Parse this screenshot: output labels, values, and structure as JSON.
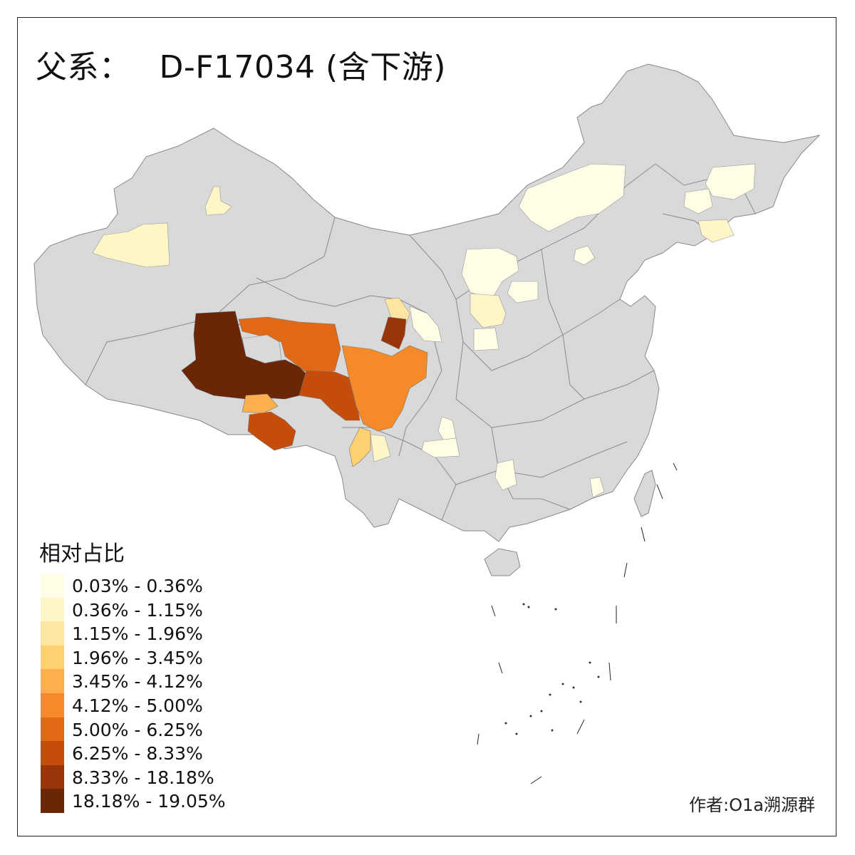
{
  "title": {
    "prefix": "父系：",
    "haplogroup": "D-F17034 (含下游)"
  },
  "legend": {
    "title": "相对占比",
    "items": [
      {
        "label": "0.03% - 0.36%",
        "color": "#FFFDE6"
      },
      {
        "label": "0.36% - 1.15%",
        "color": "#FFF6C7"
      },
      {
        "label": "1.15% - 1.96%",
        "color": "#FEE5A0"
      },
      {
        "label": "1.96% - 3.45%",
        "color": "#FDD071"
      },
      {
        "label": "3.45% - 4.12%",
        "color": "#FCAF4C"
      },
      {
        "label": "4.12% - 5.00%",
        "color": "#F48A2A"
      },
      {
        "label": "5.00% - 6.25%",
        "color": "#E06816"
      },
      {
        "label": "6.25% - 8.33%",
        "color": "#C44D0C"
      },
      {
        "label": "8.33% - 18.18%",
        "color": "#993508"
      },
      {
        "label": "18.18% - 19.05%",
        "color": "#6B2606"
      }
    ]
  },
  "base_color": "#D9D9D9",
  "author": "作者:O1a溯源群"
}
